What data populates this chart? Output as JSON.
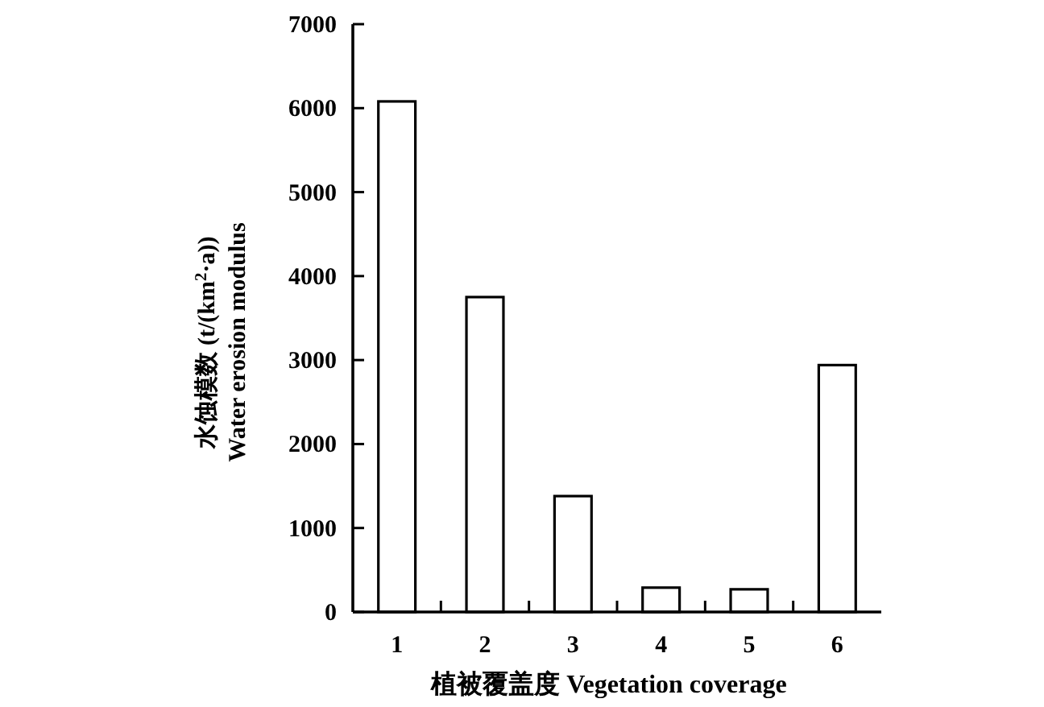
{
  "chart_data": {
    "type": "bar",
    "xlabel": "植被覆盖度 Vegetation coverage",
    "ylabel": "水蚀模数 (t/(km$^{2}$·a))\nWater erosion modulus",
    "categories": [
      "1",
      "2",
      "3",
      "4",
      "5",
      "6"
    ],
    "values": [
      6080,
      3750,
      1380,
      290,
      270,
      2940
    ],
    "color": "#ffffff",
    "ylim": [
      0,
      7000
    ],
    "yticks": [
      0,
      1000,
      2000,
      3000,
      4000,
      5000,
      6000,
      7000
    ],
    "grid": false
  }
}
